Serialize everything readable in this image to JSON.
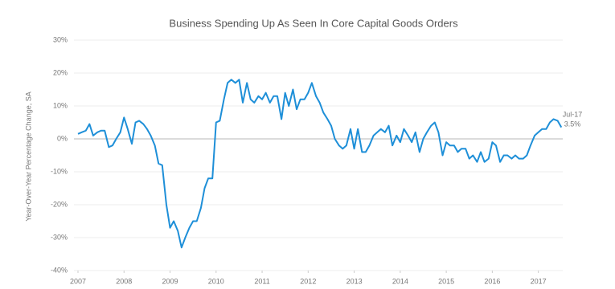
{
  "chart_data": {
    "type": "line",
    "title": "Business Spending Up As Seen In Core Capital Goods Orders",
    "y_label": "Year-Over-Year Percentage Change, SA",
    "annotation": {
      "date": "Jul-17",
      "value": "3.5%"
    },
    "color": "#1e8fd8",
    "grid": true,
    "x": [
      2007,
      2007.08,
      2007.17,
      2007.25,
      2007.33,
      2007.42,
      2007.5,
      2007.58,
      2007.67,
      2007.75,
      2007.83,
      2007.92,
      2008,
      2008.08,
      2008.17,
      2008.25,
      2008.33,
      2008.42,
      2008.5,
      2008.58,
      2008.67,
      2008.75,
      2008.83,
      2008.92,
      2009,
      2009.08,
      2009.17,
      2009.25,
      2009.33,
      2009.42,
      2009.5,
      2009.58,
      2009.67,
      2009.75,
      2009.83,
      2009.92,
      2010,
      2010.08,
      2010.17,
      2010.25,
      2010.33,
      2010.42,
      2010.5,
      2010.58,
      2010.67,
      2010.75,
      2010.83,
      2010.92,
      2011,
      2011.08,
      2011.17,
      2011.25,
      2011.33,
      2011.42,
      2011.5,
      2011.58,
      2011.67,
      2011.75,
      2011.83,
      2011.92,
      2012,
      2012.08,
      2012.17,
      2012.25,
      2012.33,
      2012.42,
      2012.5,
      2012.58,
      2012.67,
      2012.75,
      2012.83,
      2012.92,
      2013,
      2013.08,
      2013.17,
      2013.25,
      2013.33,
      2013.42,
      2013.5,
      2013.58,
      2013.67,
      2013.75,
      2013.83,
      2013.92,
      2014,
      2014.08,
      2014.17,
      2014.25,
      2014.33,
      2014.42,
      2014.5,
      2014.58,
      2014.67,
      2014.75,
      2014.83,
      2014.92,
      2015,
      2015.08,
      2015.17,
      2015.25,
      2015.33,
      2015.42,
      2015.5,
      2015.58,
      2015.67,
      2015.75,
      2015.83,
      2015.92,
      2016,
      2016.08,
      2016.17,
      2016.25,
      2016.33,
      2016.42,
      2016.5,
      2016.58,
      2016.67,
      2016.75,
      2016.83,
      2016.92,
      2017,
      2017.08,
      2017.17,
      2017.25,
      2017.33,
      2017.42,
      2017.5
    ],
    "values": [
      1.5,
      2,
      2.5,
      4.5,
      1,
      2,
      2.5,
      2.5,
      -2.5,
      -2,
      0,
      2,
      6.5,
      3,
      -1.5,
      5,
      5.5,
      4.5,
      3,
      1,
      -2,
      -7.5,
      -8,
      -20,
      -27,
      -25,
      -28,
      -33,
      -30,
      -27,
      -25,
      -25,
      -21,
      -15,
      -12,
      -12,
      5,
      5.5,
      12,
      17,
      18,
      17,
      18,
      11,
      17,
      12,
      11,
      13,
      12,
      14,
      11,
      13,
      13,
      6,
      14,
      10,
      15,
      9,
      12,
      12,
      14,
      17,
      13,
      11,
      8,
      6,
      4,
      0,
      -2,
      -3,
      -2,
      3,
      -3,
      3,
      -4,
      -4,
      -2,
      1,
      2,
      3,
      2,
      4,
      -2,
      1,
      -1,
      3,
      1,
      -1,
      2,
      -4,
      0,
      2,
      4,
      5,
      2,
      -5,
      -1,
      -2,
      -2,
      -4,
      -3,
      -3,
      -6,
      -5,
      -7,
      -4,
      -7,
      -6,
      -1,
      -2,
      -7,
      -5,
      -5,
      -6,
      -5,
      -6,
      -6,
      -5,
      -2,
      1,
      2,
      3,
      3,
      5,
      6,
      5.5,
      3.5
    ],
    "xlim": [
      2007,
      2017.6
    ],
    "xticks": [
      2007,
      2008,
      2009,
      2010,
      2011,
      2012,
      2013,
      2014,
      2015,
      2016,
      2017
    ],
    "ylim": [
      -40,
      30
    ],
    "yticks": [
      {
        "value": -40,
        "label": "-40%"
      },
      {
        "value": -30,
        "label": "-30%"
      },
      {
        "value": -20,
        "label": "-20%"
      },
      {
        "value": -10,
        "label": "-10%"
      },
      {
        "value": 0,
        "label": "0%"
      },
      {
        "value": 10,
        "label": "10%"
      },
      {
        "value": 20,
        "label": "20%"
      },
      {
        "value": 30,
        "label": "30%"
      }
    ]
  }
}
